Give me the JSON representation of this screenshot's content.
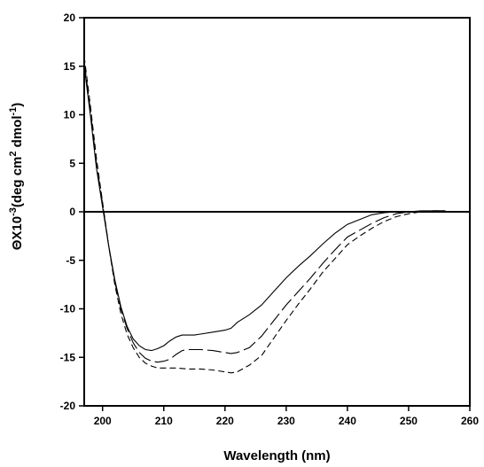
{
  "chart_data": {
    "type": "line",
    "title": "",
    "xlabel": "Wavelength (nm)",
    "ylabel": {
      "parts": [
        {
          "text": "ΘX10",
          "sup": false
        },
        {
          "text": "-3",
          "sup": true
        },
        {
          "text": "(deg cm",
          "sup": false
        },
        {
          "text": "2",
          "sup": true
        },
        {
          "text": " dmol",
          "sup": false
        },
        {
          "text": "-1",
          "sup": true
        },
        {
          "text": ")",
          "sup": false
        }
      ]
    },
    "xlim": [
      197,
      260
    ],
    "ylim": [
      -20,
      20
    ],
    "x_ticks": [
      200,
      210,
      220,
      230,
      240,
      250,
      260
    ],
    "y_ticks": [
      -20,
      -15,
      -10,
      -5,
      0,
      5,
      10,
      15,
      20
    ],
    "grid": false,
    "zero_line": true,
    "series": [
      {
        "style": "solid",
        "points": [
          [
            197,
            15
          ],
          [
            198,
            10
          ],
          [
            199,
            4.5
          ],
          [
            200,
            0.5
          ],
          [
            201,
            -3.5
          ],
          [
            202,
            -7
          ],
          [
            203,
            -9.8
          ],
          [
            204,
            -11.8
          ],
          [
            205,
            -13.1
          ],
          [
            206,
            -13.8
          ],
          [
            207,
            -14.2
          ],
          [
            208,
            -14.3
          ],
          [
            209,
            -14.1
          ],
          [
            210,
            -13.8
          ],
          [
            211,
            -13.3
          ],
          [
            212,
            -12.9
          ],
          [
            213,
            -12.7
          ],
          [
            214,
            -12.7
          ],
          [
            215,
            -12.7
          ],
          [
            216,
            -12.6
          ],
          [
            218,
            -12.4
          ],
          [
            220,
            -12.2
          ],
          [
            221,
            -12.0
          ],
          [
            222,
            -11.4
          ],
          [
            224,
            -10.6
          ],
          [
            226,
            -9.6
          ],
          [
            228,
            -8.2
          ],
          [
            230,
            -6.8
          ],
          [
            232,
            -5.6
          ],
          [
            234,
            -4.5
          ],
          [
            236,
            -3.3
          ],
          [
            238,
            -2.2
          ],
          [
            240,
            -1.3
          ],
          [
            242,
            -0.8
          ],
          [
            244,
            -0.3
          ],
          [
            246,
            -0.1
          ],
          [
            248,
            0
          ],
          [
            250,
            0
          ],
          [
            252,
            0.1
          ],
          [
            254,
            0.1
          ],
          [
            256,
            0.1
          ]
        ]
      },
      {
        "style": "long-dash",
        "points": [
          [
            197,
            15.5
          ],
          [
            198,
            10.5
          ],
          [
            199,
            5
          ],
          [
            200,
            0.8
          ],
          [
            201,
            -3.5
          ],
          [
            202,
            -7.2
          ],
          [
            203,
            -10
          ],
          [
            204,
            -12
          ],
          [
            205,
            -13.5
          ],
          [
            206,
            -14.5
          ],
          [
            207,
            -15.1
          ],
          [
            208,
            -15.4
          ],
          [
            209,
            -15.5
          ],
          [
            210,
            -15.4
          ],
          [
            211,
            -15.2
          ],
          [
            212,
            -14.7
          ],
          [
            213,
            -14.3
          ],
          [
            214,
            -14.2
          ],
          [
            215,
            -14.2
          ],
          [
            216,
            -14.2
          ],
          [
            218,
            -14.3
          ],
          [
            220,
            -14.5
          ],
          [
            221,
            -14.6
          ],
          [
            222,
            -14.5
          ],
          [
            224,
            -14.0
          ],
          [
            226,
            -12.8
          ],
          [
            228,
            -11.2
          ],
          [
            230,
            -9.6
          ],
          [
            232,
            -8.2
          ],
          [
            234,
            -6.8
          ],
          [
            236,
            -5.3
          ],
          [
            238,
            -3.9
          ],
          [
            240,
            -2.6
          ],
          [
            242,
            -1.9
          ],
          [
            244,
            -1.2
          ],
          [
            246,
            -0.6
          ],
          [
            248,
            -0.2
          ],
          [
            250,
            0
          ],
          [
            252,
            0
          ],
          [
            254,
            0.1
          ],
          [
            256,
            0.1
          ]
        ]
      },
      {
        "style": "short-dash",
        "points": [
          [
            197,
            16
          ],
          [
            198,
            11
          ],
          [
            199,
            5.5
          ],
          [
            200,
            1
          ],
          [
            201,
            -3.5
          ],
          [
            202,
            -7.5
          ],
          [
            203,
            -10.5
          ],
          [
            204,
            -12.6
          ],
          [
            205,
            -14.0
          ],
          [
            206,
            -15.0
          ],
          [
            207,
            -15.6
          ],
          [
            208,
            -15.9
          ],
          [
            209,
            -16.1
          ],
          [
            210,
            -16.1
          ],
          [
            212,
            -16.1
          ],
          [
            214,
            -16.2
          ],
          [
            216,
            -16.2
          ],
          [
            218,
            -16.3
          ],
          [
            220,
            -16.5
          ],
          [
            221,
            -16.6
          ],
          [
            222,
            -16.5
          ],
          [
            224,
            -15.8
          ],
          [
            226,
            -14.8
          ],
          [
            228,
            -13.0
          ],
          [
            230,
            -11.2
          ],
          [
            232,
            -9.5
          ],
          [
            234,
            -7.9
          ],
          [
            236,
            -6.2
          ],
          [
            238,
            -4.8
          ],
          [
            240,
            -3.4
          ],
          [
            242,
            -2.5
          ],
          [
            244,
            -1.7
          ],
          [
            246,
            -1.0
          ],
          [
            248,
            -0.5
          ],
          [
            250,
            -0.2
          ],
          [
            252,
            0
          ],
          [
            254,
            0.1
          ],
          [
            256,
            0.1
          ]
        ]
      }
    ]
  }
}
